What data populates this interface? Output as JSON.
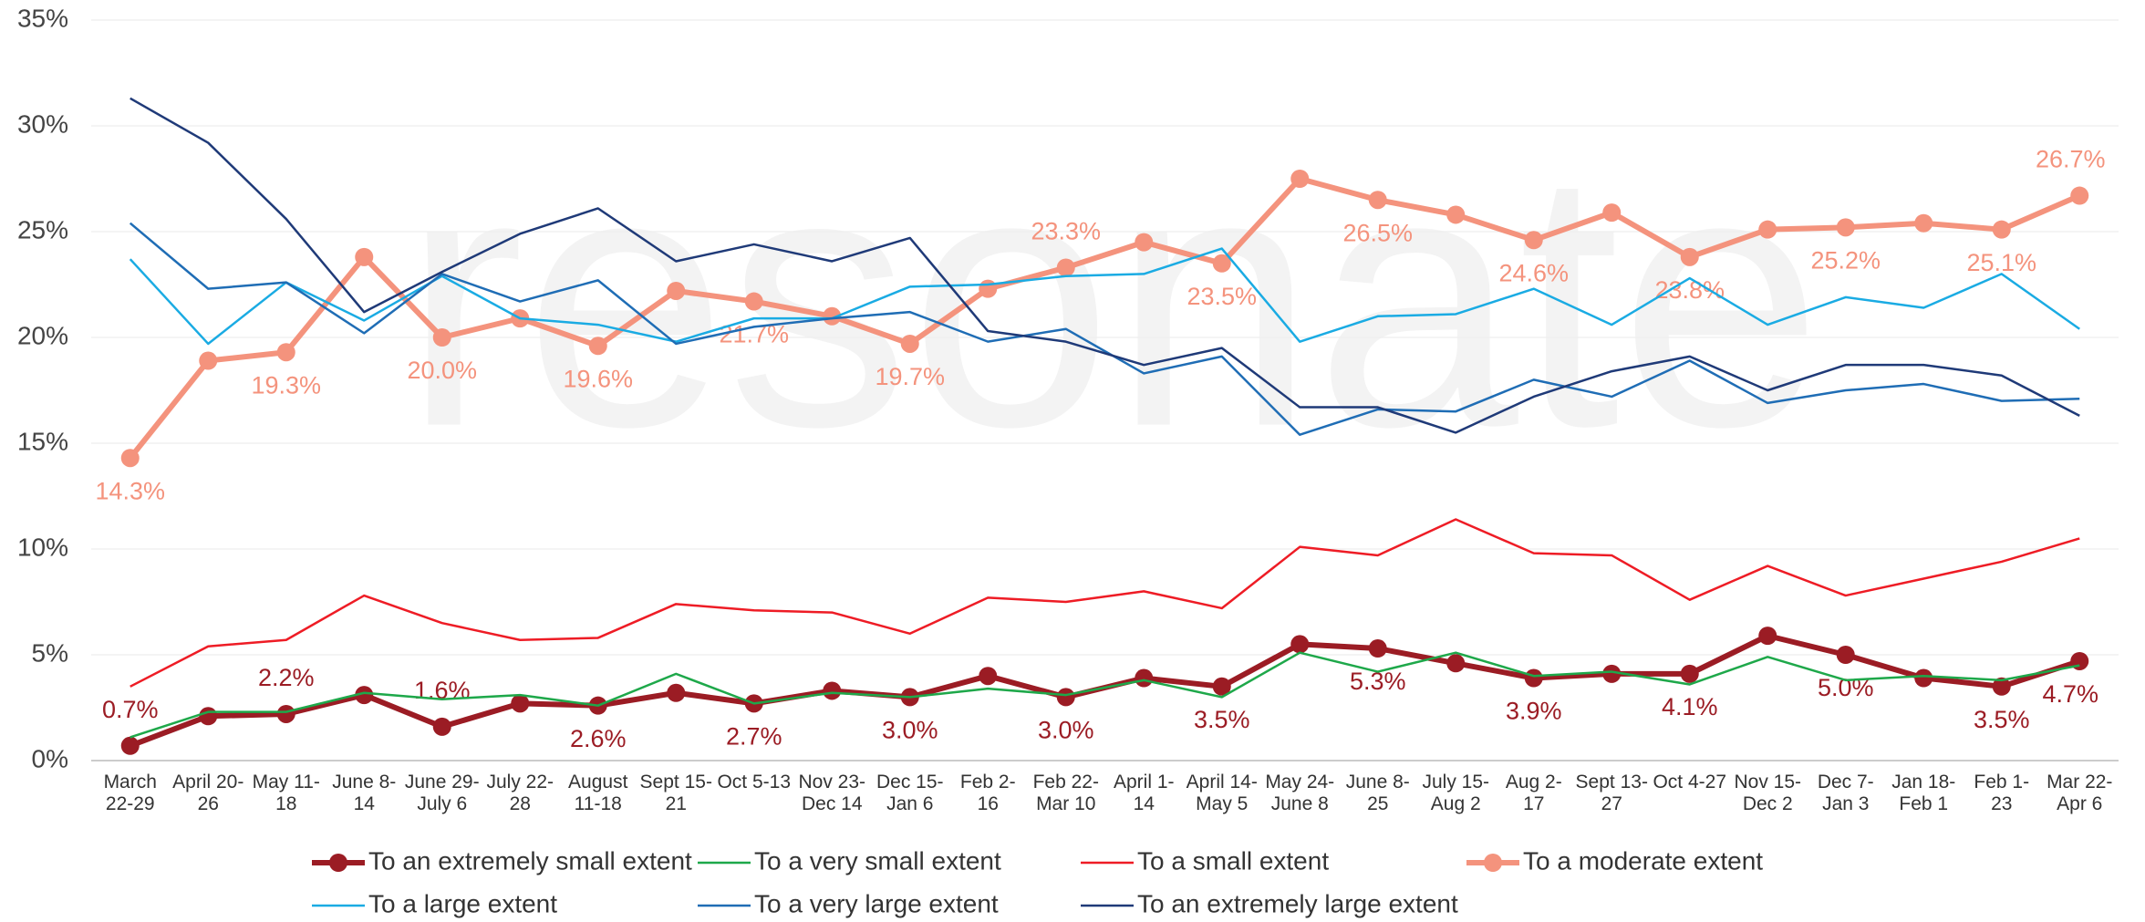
{
  "chart_data": {
    "type": "line",
    "watermark": "resonate",
    "categories": [
      "March 22-29",
      "April 20-26",
      "May 11-18",
      "June 8-14",
      "June 29-July 6",
      "July 22-28",
      "August 11-18",
      "Sept 15-21",
      "Oct 5-13",
      "Nov 23-Dec 14",
      "Dec 15-Jan 6",
      "Feb 2-16",
      "Feb 22-Mar 10",
      "April 1-14",
      "April 14-May 5",
      "May 24-June 8",
      "June 8-25",
      "July 15-Aug 2",
      "Aug 2-17",
      "Sept 13-27",
      "Oct 4-27",
      "Nov 15-Dec 2",
      "Dec 7-Jan 3",
      "Jan 18-Feb 1",
      "Feb 1-23",
      "Mar 22-Apr 6"
    ],
    "ylim": [
      0,
      35
    ],
    "yticks": [
      {
        "value": 0,
        "label": "0%"
      },
      {
        "value": 5,
        "label": "5%"
      },
      {
        "value": 10,
        "label": "10%"
      },
      {
        "value": 15,
        "label": "15%"
      },
      {
        "value": 20,
        "label": "20%"
      },
      {
        "value": 25,
        "label": "25%"
      },
      {
        "value": 30,
        "label": "30%"
      },
      {
        "value": 35,
        "label": "35%"
      }
    ],
    "grid": true,
    "legend": "bottom",
    "series": [
      {
        "name": "To an extremely small extent",
        "color": "#9b1c24",
        "marker": true,
        "values": [
          0.7,
          2.1,
          2.2,
          3.1,
          1.6,
          2.7,
          2.6,
          3.2,
          2.7,
          3.3,
          3.0,
          4.0,
          3.0,
          3.9,
          3.5,
          5.5,
          5.3,
          4.6,
          3.9,
          4.1,
          4.1,
          5.9,
          5.0,
          3.9,
          3.5,
          4.7
        ],
        "value_labels": [
          "0.7%",
          null,
          "2.2%",
          null,
          "1.6%",
          null,
          "2.6%",
          null,
          "2.7%",
          null,
          "3.0%",
          null,
          "3.0%",
          null,
          "3.5%",
          null,
          "5.3%",
          null,
          "3.9%",
          null,
          "4.1%",
          null,
          "5.0%",
          null,
          "3.5%",
          "4.7%"
        ]
      },
      {
        "name": "To a very small extent",
        "color": "#1ea84a",
        "marker": false,
        "values": [
          1.1,
          2.3,
          2.3,
          3.2,
          2.9,
          3.1,
          2.6,
          4.1,
          2.7,
          3.2,
          3.0,
          3.4,
          3.1,
          3.8,
          3.0,
          5.1,
          4.2,
          5.1,
          4.0,
          4.2,
          3.6,
          4.9,
          3.8,
          4.0,
          3.8,
          4.5
        ]
      },
      {
        "name": "To a small extent",
        "color": "#ee1c25",
        "marker": false,
        "values": [
          3.5,
          5.4,
          5.7,
          7.8,
          6.5,
          5.7,
          5.8,
          7.4,
          7.1,
          7.0,
          6.0,
          7.7,
          7.5,
          8.0,
          7.2,
          10.1,
          9.7,
          11.4,
          9.8,
          9.7,
          7.6,
          9.2,
          7.8,
          8.6,
          9.4,
          10.5
        ]
      },
      {
        "name": "To a moderate extent",
        "color": "#f4937d",
        "marker": true,
        "values": [
          14.3,
          18.9,
          19.3,
          23.8,
          20.0,
          20.9,
          19.6,
          22.2,
          21.7,
          21.0,
          19.7,
          22.3,
          23.3,
          24.5,
          23.5,
          27.5,
          26.5,
          25.8,
          24.6,
          25.9,
          23.8,
          25.1,
          25.2,
          25.4,
          25.1,
          26.7
        ],
        "value_labels": [
          "14.3%",
          null,
          "19.3%",
          null,
          "20.0%",
          null,
          "19.6%",
          null,
          "21.7%",
          null,
          "19.7%",
          null,
          "23.3%",
          null,
          "23.5%",
          null,
          "26.5%",
          null,
          "24.6%",
          null,
          "23.8%",
          null,
          "25.2%",
          null,
          "25.1%",
          "26.7%"
        ]
      },
      {
        "name": "To a large extent",
        "color": "#1aabe3",
        "marker": false,
        "values": [
          23.7,
          19.7,
          22.6,
          20.8,
          22.9,
          20.9,
          20.6,
          19.8,
          20.9,
          20.9,
          22.4,
          22.5,
          22.9,
          23.0,
          24.2,
          19.8,
          21.0,
          21.1,
          22.3,
          20.6,
          22.8,
          20.6,
          21.9,
          21.4,
          23.0,
          20.4
        ]
      },
      {
        "name": "To a very large extent",
        "color": "#1f6db5",
        "marker": false,
        "values": [
          25.4,
          22.3,
          22.6,
          20.2,
          23.0,
          21.7,
          22.7,
          19.7,
          20.5,
          20.9,
          21.2,
          19.8,
          20.4,
          18.3,
          19.1,
          15.4,
          16.6,
          16.5,
          18.0,
          17.2,
          18.9,
          16.9,
          17.5,
          17.8,
          17.0,
          17.1
        ]
      },
      {
        "name": "To an extremely large extent",
        "color": "#1f3a78",
        "marker": false,
        "values": [
          31.3,
          29.2,
          25.6,
          21.2,
          23.1,
          24.9,
          26.1,
          23.6,
          24.4,
          23.6,
          24.7,
          20.3,
          19.8,
          18.7,
          19.5,
          16.7,
          16.7,
          15.5,
          17.2,
          18.4,
          19.1,
          17.5,
          18.7,
          18.7,
          18.2,
          16.3
        ]
      }
    ]
  }
}
